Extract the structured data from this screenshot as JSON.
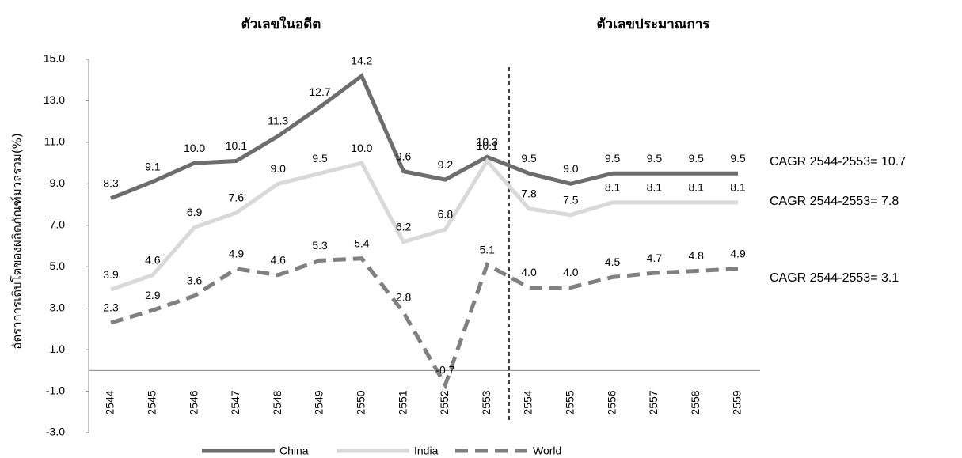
{
  "chart_data": {
    "type": "line",
    "y_label": "อัตราการเติบโตของผลิตภัณฑ์มวลรวม(%)",
    "annotations": [
      "ตัวเลขในอดีต",
      "ตัวเลขประมาณการ",
      "CAGR 2544-2553= 10.7",
      "CAGR 2544-2553= 7.8",
      "CAGR 2544-2553= 3.1"
    ],
    "categories": [
      "2544",
      "2545",
      "2546",
      "2547",
      "2548",
      "2549",
      "2550",
      "2551",
      "2552",
      "2553",
      "2554",
      "2555",
      "2556",
      "2557",
      "2558",
      "2559"
    ],
    "series": [
      {
        "name": "China",
        "color": "#6d6d6d",
        "dashed": false,
        "values": [
          8.3,
          9.1,
          10.0,
          10.1,
          11.3,
          12.7,
          14.2,
          9.6,
          9.2,
          10.3,
          9.5,
          9.0,
          9.5,
          9.5,
          9.5,
          9.5
        ],
        "value_labels": [
          "8.3",
          "9.1",
          "10.0",
          "10.1",
          "11.3",
          "12.7",
          "14.2",
          "9.6",
          "9.2",
          "10.3",
          "9.5",
          "9.0",
          "9.5",
          "9.5",
          "9.5",
          "9.5"
        ]
      },
      {
        "name": "India",
        "color": "#d9d9d9",
        "dashed": false,
        "values": [
          3.9,
          4.6,
          6.9,
          7.6,
          9.0,
          9.5,
          10.0,
          6.2,
          6.8,
          10.1,
          7.8,
          7.5,
          8.1,
          8.1,
          8.1,
          8.1
        ],
        "value_labels": [
          "3.9",
          "4.6",
          "6.9",
          "7.6",
          "9.0",
          "9.5",
          "10.0",
          "6.2",
          "6.8",
          "10.1",
          "7.8",
          "7.5",
          "8.1",
          "8.1",
          "8.1",
          "8.1"
        ]
      },
      {
        "name": "World",
        "color": "#808080",
        "dashed": true,
        "values": [
          2.3,
          2.9,
          3.6,
          4.9,
          4.6,
          5.3,
          5.4,
          2.8,
          -0.7,
          5.1,
          4.0,
          4.0,
          4.5,
          4.7,
          4.8,
          4.9
        ],
        "value_labels": [
          "2.3",
          "2.9",
          "3.6",
          "4.9",
          "4.6",
          "5.3",
          "5.4",
          "2.8",
          "-0.7",
          "5.1",
          "4.0",
          "4.0",
          "4.5",
          "4.7",
          "4.8",
          "4.9"
        ]
      }
    ],
    "ylim": [
      -3,
      15
    ],
    "yticks": [
      {
        "value": -3,
        "label": "-3.0"
      },
      {
        "value": -1,
        "label": "-1.0"
      },
      {
        "value": 1,
        "label": "1.0"
      },
      {
        "value": 3,
        "label": "3.0"
      },
      {
        "value": 5,
        "label": "5.0"
      },
      {
        "value": 7,
        "label": "7.0"
      },
      {
        "value": 9,
        "label": "9.0"
      },
      {
        "value": 11,
        "label": "11.0"
      },
      {
        "value": 13,
        "label": "13.0"
      },
      {
        "value": 15,
        "label": "15.0"
      }
    ],
    "grid": false,
    "legend": "bottom"
  }
}
